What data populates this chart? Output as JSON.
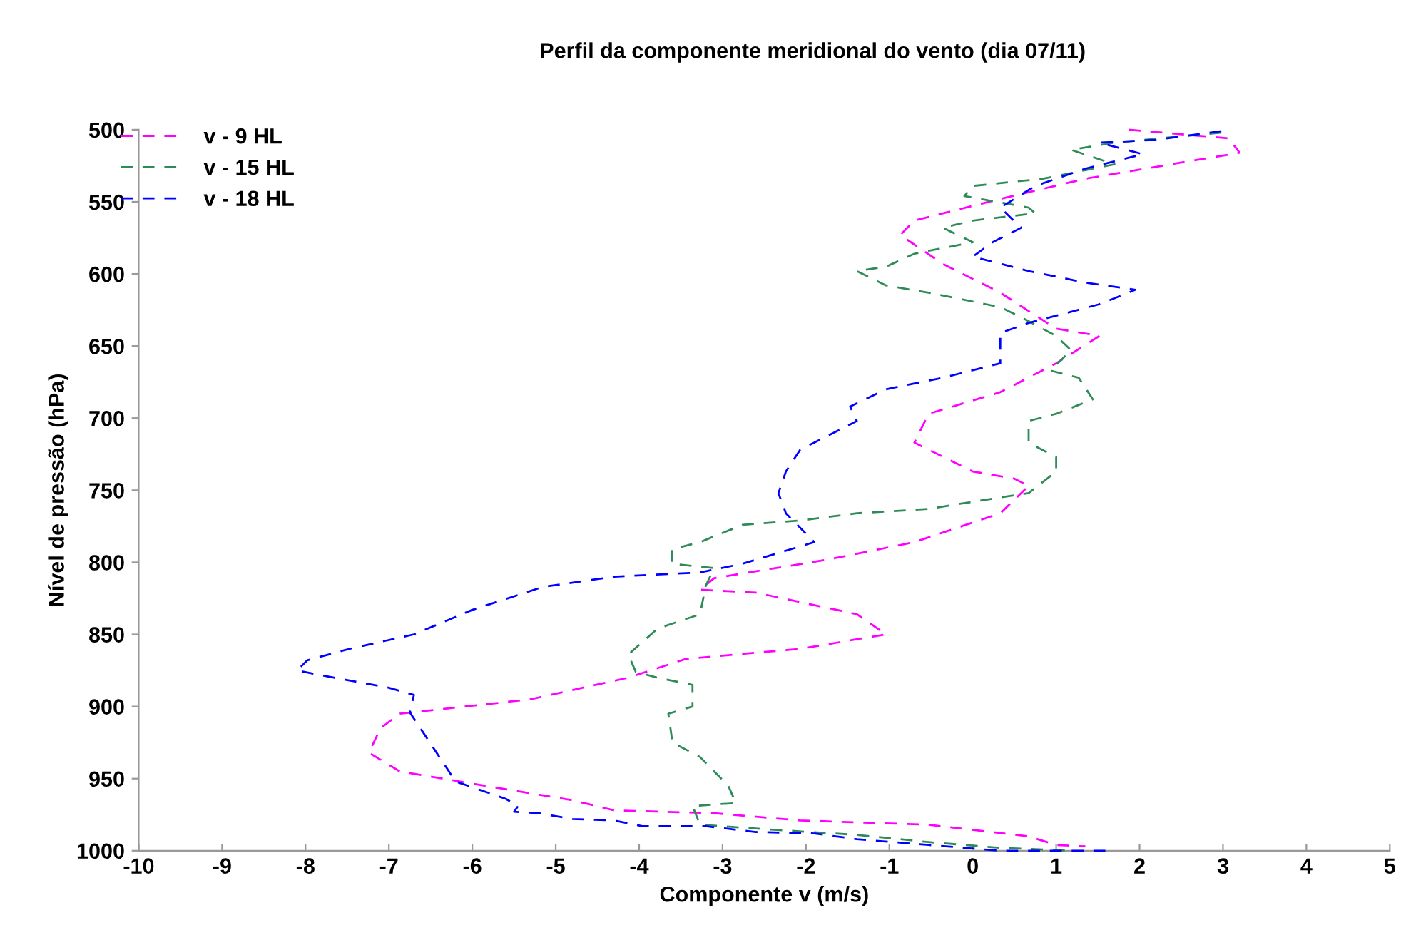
{
  "chart_data": {
    "type": "line",
    "title": "Perfil da componente meridional do vento (dia 07/11)",
    "xlabel": "Componente v (m/s)",
    "ylabel": "Nível de pressão (hPa)",
    "xlim": [
      -10,
      5
    ],
    "xticks": [
      -10,
      -9,
      -8,
      -7,
      -6,
      -5,
      -4,
      -3,
      -2,
      -1,
      0,
      1,
      2,
      3,
      4,
      5
    ],
    "ylim": [
      1000,
      500
    ],
    "yticks": [
      500,
      550,
      600,
      650,
      700,
      750,
      800,
      850,
      900,
      950,
      1000
    ],
    "grid": false,
    "legend": "top left",
    "line_style": "dashed",
    "marker": "none",
    "series": [
      {
        "name": "v - 9 HL",
        "color": "#ff00ff",
        "x": [
          1.87,
          3.07,
          3.2,
          1.35,
          0.33,
          -0.7,
          -0.87,
          -0.36,
          0.33,
          1.0,
          1.52,
          1.0,
          0.33,
          -0.53,
          -0.7,
          0,
          0.5,
          0.67,
          0.33,
          -0.7,
          -1.73,
          -3.1,
          -3.27,
          -2.6,
          -1.39,
          -1.04,
          -2.07,
          -3.44,
          -4.13,
          -5.3,
          -6.87,
          -7.1,
          -7.24,
          -6.87,
          -5.84,
          -4.8,
          -4.3,
          -3.1,
          -2.07,
          -0.53,
          0.67,
          1.0,
          1.35
        ],
        "values": [
          500,
          506,
          516,
          534,
          548,
          563,
          573,
          593,
          613,
          638,
          643,
          662,
          682,
          697,
          717,
          737,
          742,
          747,
          766,
          786,
          798,
          811,
          819,
          821,
          836,
          850,
          860,
          867,
          880,
          895,
          905,
          915,
          932,
          945,
          955,
          965,
          972,
          974,
          979,
          982,
          990,
          996,
          997
        ]
      },
      {
        "name": "v - 15 HL",
        "color": "#2e8b57",
        "x": [
          2.98,
          1.7,
          1.18,
          1.7,
          0.84,
          0,
          -0.1,
          0.67,
          0.75,
          0,
          -0.36,
          0,
          -0.7,
          -1.04,
          -1.39,
          -1.04,
          -0.53,
          0.33,
          0.58,
          1.0,
          1.18,
          0.93,
          1.27,
          1.44,
          1.0,
          0.67,
          0.67,
          1.0,
          1.0,
          0.67,
          0,
          -0.53,
          -1.39,
          -2.07,
          -2.76,
          -3.27,
          -3.61,
          -3.61,
          -3.1,
          -3.2,
          -3.27,
          -3.78,
          -4.13,
          -4.04,
          -3.78,
          -3.36,
          -3.36,
          -3.65,
          -3.6,
          -3.27,
          -2.93,
          -2.84,
          -3.36,
          -3.27,
          -2.24,
          -1.39,
          -0.53,
          0.33,
          1.18
        ],
        "values": [
          502,
          509,
          514,
          524,
          534,
          539,
          546,
          554,
          558,
          563,
          568,
          578,
          586,
          595,
          598,
          608,
          613,
          623,
          630,
          643,
          653,
          667,
          672,
          687,
          697,
          702,
          717,
          727,
          737,
          752,
          758,
          763,
          766,
          771,
          774,
          786,
          791,
          801,
          804,
          816,
          836,
          846,
          864,
          876,
          880,
          885,
          900,
          905,
          925,
          935,
          955,
          967,
          969,
          982,
          986,
          989,
          994,
          998,
          1000
        ]
      },
      {
        "name": "v - 18 HL",
        "color": "#0000ff",
        "x": [
          2.98,
          2.2,
          1.52,
          2.04,
          1.35,
          0.75,
          0.33,
          0.58,
          0.24,
          0,
          0.67,
          1.35,
          1.95,
          1.52,
          0.67,
          0.33,
          0.33,
          -0.36,
          -1.04,
          -1.47,
          -1.39,
          -1.73,
          -2.07,
          -2.24,
          -2.33,
          -2.24,
          -1.9,
          -2.76,
          -3.27,
          -4.3,
          -5.15,
          -6.0,
          -6.7,
          -7.47,
          -7.98,
          -8.1,
          -7.75,
          -7.0,
          -6.7,
          -6.75,
          -6.2,
          -6.0,
          -5.6,
          -5.45,
          -5.5,
          -5.2,
          -4.8,
          -4.3,
          -3.96,
          -3.2,
          -2.6,
          -1.9,
          -1.39,
          -0.53,
          0.33,
          1.6
        ],
        "values": [
          501,
          507,
          509,
          517,
          527,
          539,
          554,
          568,
          578,
          588,
          598,
          606,
          611,
          621,
          634,
          641,
          662,
          672,
          680,
          692,
          702,
          712,
          722,
          737,
          752,
          766,
          786,
          801,
          807,
          810,
          817,
          833,
          850,
          860,
          868,
          875,
          879,
          887,
          892,
          904,
          952,
          956,
          964,
          969,
          973,
          974,
          978,
          979,
          983,
          983,
          987,
          988,
          992,
          996,
          1000,
          1000
        ]
      }
    ]
  }
}
